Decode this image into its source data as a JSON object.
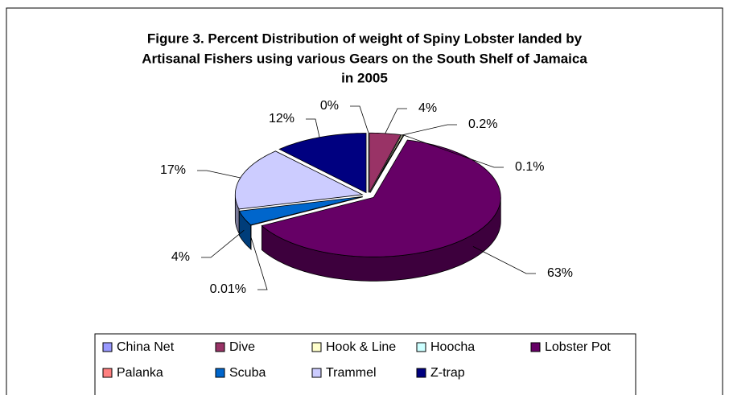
{
  "chart_data": {
    "type": "pie3d",
    "title": [
      "Figure 3. Percent Distribution of weight of Spiny Lobster landed by",
      "Artisanal Fishers using various Gears on the South Shelf of Jamaica",
      "in 2005"
    ],
    "categories": [
      "China Net",
      "Dive",
      "Hook & Line",
      "Hoocha",
      "Lobster Pot",
      "Palanka",
      "Scuba",
      "Trammel",
      "Z-trap"
    ],
    "values": [
      0,
      4,
      0.2,
      0.1,
      63,
      0.01,
      4,
      17,
      12
    ],
    "value_labels": [
      "0%",
      "4%",
      "0.2%",
      "0.1%",
      "63%",
      "0.01%",
      "4%",
      "17%",
      "12%"
    ],
    "colors": [
      "#9999ff",
      "#993366",
      "#ffffcc",
      "#ccffff",
      "#660066",
      "#ff8080",
      "#0066cc",
      "#ccccff",
      "#000080"
    ]
  }
}
